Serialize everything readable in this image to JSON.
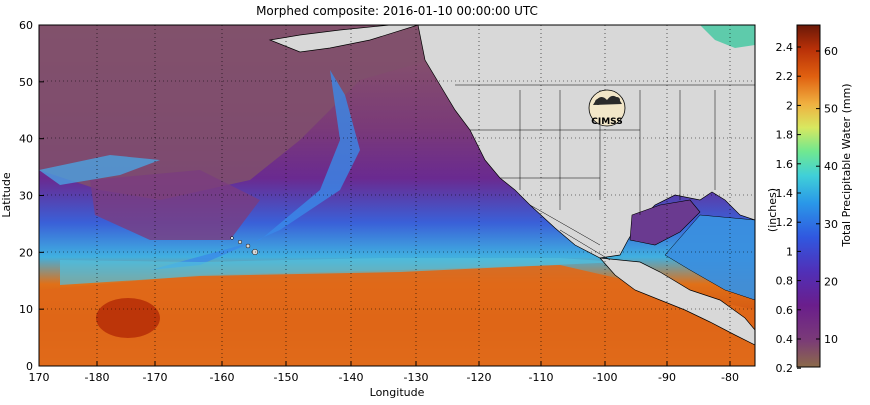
{
  "title": "Morphed composite: 2016-01-10 00:00:00 UTC",
  "xlabel": "Longitude",
  "ylabel": "Latitude",
  "x_ticks": [
    "170",
    "-180",
    "-170",
    "-160",
    "-150",
    "-140",
    "-130",
    "-120",
    "-110",
    "-100",
    "-90",
    "-80"
  ],
  "y_ticks": [
    "0",
    "10",
    "20",
    "30",
    "40",
    "50",
    "60"
  ],
  "logo_text": "CIMSS",
  "colorbar": {
    "left_label": "(inches)",
    "right_label": "Total Precipitable Water (mm)",
    "inch_ticks": [
      "2.4",
      "2.2",
      "2",
      "1.8",
      "1.6",
      "1.4",
      "1.2",
      "1",
      "0.8",
      "0.6",
      "0.4",
      "0.2"
    ],
    "mm_ticks": [
      "60",
      "50",
      "40",
      "30",
      "20",
      "10"
    ],
    "colors": [
      "#8c5a3c",
      "#7a3a78",
      "#6a1e8c",
      "#5a2aa8",
      "#3c50d8",
      "#2a90e8",
      "#40c8e8",
      "#70e8a0",
      "#d8e860",
      "#f0a030",
      "#e06010",
      "#c03008",
      "#7a1808"
    ]
  },
  "map_colors": {
    "land": "#d8d8d8",
    "dry": "#80506c",
    "moist": "#4070e0",
    "wet": "#e06010"
  }
}
